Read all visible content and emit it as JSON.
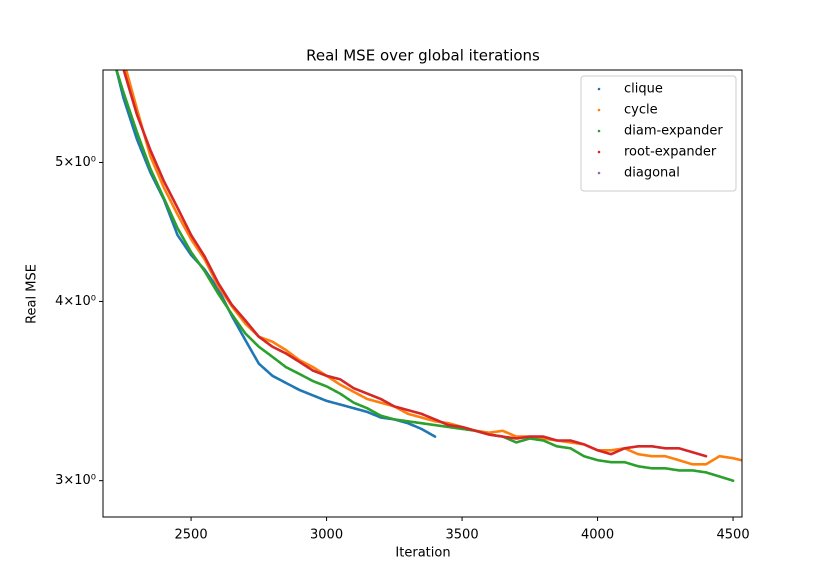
{
  "chart_data": {
    "type": "scatter",
    "title": "Real MSE over global iterations",
    "x_label": "Iteration",
    "y_label": "Real MSE",
    "xlim": [
      2175,
      4533
    ],
    "ylim": [
      2.83,
      5.8
    ],
    "y_scale": "log",
    "xticks": [
      2500,
      3000,
      3500,
      4000,
      4500
    ],
    "yticks": [
      {
        "value": 3,
        "label": "3×10⁰"
      },
      {
        "value": 4,
        "label": "4×10⁰"
      },
      {
        "value": 5,
        "label": "5×10⁰"
      }
    ],
    "legend": "upper right",
    "grid": false,
    "series": [
      {
        "name": "clique",
        "color": "#1f77b4",
        "x": [
          2225,
          2250,
          2300,
          2350,
          2400,
          2450,
          2500,
          2550,
          2600,
          2650,
          2700,
          2750,
          2800,
          2850,
          2900,
          2950,
          3000,
          3050,
          3100,
          3150,
          3200,
          3250,
          3300,
          3350,
          3400
        ],
        "values": [
          5.8,
          5.55,
          5.19,
          4.92,
          4.71,
          4.45,
          4.31,
          4.21,
          4.08,
          3.91,
          3.76,
          3.62,
          3.55,
          3.51,
          3.47,
          3.44,
          3.41,
          3.39,
          3.37,
          3.35,
          3.32,
          3.31,
          3.29,
          3.26,
          3.22
        ]
      },
      {
        "name": "cycle",
        "color": "#ff7f0e",
        "x": [
          2250,
          2300,
          2350,
          2400,
          2450,
          2500,
          2550,
          2600,
          2650,
          2700,
          2750,
          2800,
          2850,
          2900,
          2950,
          3000,
          3050,
          3100,
          3150,
          3200,
          3250,
          3300,
          3350,
          3400,
          3450,
          3500,
          3550,
          3600,
          3650,
          3700,
          3750,
          3800,
          3850,
          3900,
          3950,
          4000,
          4050,
          4100,
          4150,
          4200,
          4250,
          4300,
          4350,
          4400,
          4450,
          4500,
          4530
        ],
        "values": [
          5.9,
          5.45,
          5.05,
          4.8,
          4.6,
          4.42,
          4.28,
          4.1,
          3.97,
          3.86,
          3.78,
          3.75,
          3.7,
          3.64,
          3.6,
          3.55,
          3.5,
          3.46,
          3.42,
          3.4,
          3.38,
          3.34,
          3.32,
          3.3,
          3.29,
          3.27,
          3.25,
          3.24,
          3.25,
          3.22,
          3.22,
          3.21,
          3.2,
          3.19,
          3.18,
          3.15,
          3.15,
          3.16,
          3.13,
          3.12,
          3.12,
          3.1,
          3.08,
          3.08,
          3.12,
          3.11,
          3.1
        ]
      },
      {
        "name": "diam-expander",
        "color": "#2ca02c",
        "x": [
          2225,
          2250,
          2300,
          2350,
          2400,
          2450,
          2500,
          2550,
          2600,
          2650,
          2700,
          2750,
          2800,
          2850,
          2900,
          2950,
          3000,
          3050,
          3100,
          3150,
          3200,
          3250,
          3300,
          3350,
          3400,
          3450,
          3500,
          3550,
          3600,
          3650,
          3700,
          3750,
          3800,
          3850,
          3900,
          3950,
          4000,
          4050,
          4100,
          4150,
          4200,
          4250,
          4300,
          4350,
          4400,
          4450,
          4500
        ],
        "values": [
          5.8,
          5.6,
          5.25,
          4.95,
          4.72,
          4.5,
          4.33,
          4.2,
          4.05,
          3.92,
          3.8,
          3.72,
          3.66,
          3.6,
          3.56,
          3.52,
          3.49,
          3.45,
          3.4,
          3.37,
          3.33,
          3.31,
          3.3,
          3.29,
          3.28,
          3.27,
          3.26,
          3.25,
          3.23,
          3.22,
          3.19,
          3.21,
          3.2,
          3.17,
          3.16,
          3.12,
          3.1,
          3.09,
          3.09,
          3.07,
          3.06,
          3.06,
          3.05,
          3.05,
          3.04,
          3.02,
          3.0
        ]
      },
      {
        "name": "root-expander",
        "color": "#d62728",
        "x": [
          2240,
          2300,
          2350,
          2400,
          2450,
          2500,
          2550,
          2600,
          2650,
          2700,
          2750,
          2800,
          2850,
          2900,
          2950,
          3000,
          3050,
          3100,
          3150,
          3200,
          3250,
          3300,
          3350,
          3400,
          3450,
          3500,
          3550,
          3600,
          3650,
          3700,
          3750,
          3800,
          3850,
          3900,
          3950,
          4000,
          4050,
          4100,
          4150,
          4200,
          4250,
          4300,
          4350,
          4400
        ],
        "values": [
          5.9,
          5.4,
          5.1,
          4.85,
          4.65,
          4.45,
          4.3,
          4.12,
          3.98,
          3.88,
          3.78,
          3.72,
          3.68,
          3.63,
          3.58,
          3.55,
          3.53,
          3.48,
          3.45,
          3.42,
          3.38,
          3.36,
          3.34,
          3.31,
          3.28,
          3.27,
          3.25,
          3.23,
          3.22,
          3.21,
          3.22,
          3.22,
          3.2,
          3.2,
          3.18,
          3.15,
          3.13,
          3.16,
          3.17,
          3.17,
          3.16,
          3.16,
          3.14,
          3.12
        ]
      },
      {
        "name": "diagonal",
        "color": "#9467bd",
        "x": [],
        "values": []
      }
    ]
  }
}
